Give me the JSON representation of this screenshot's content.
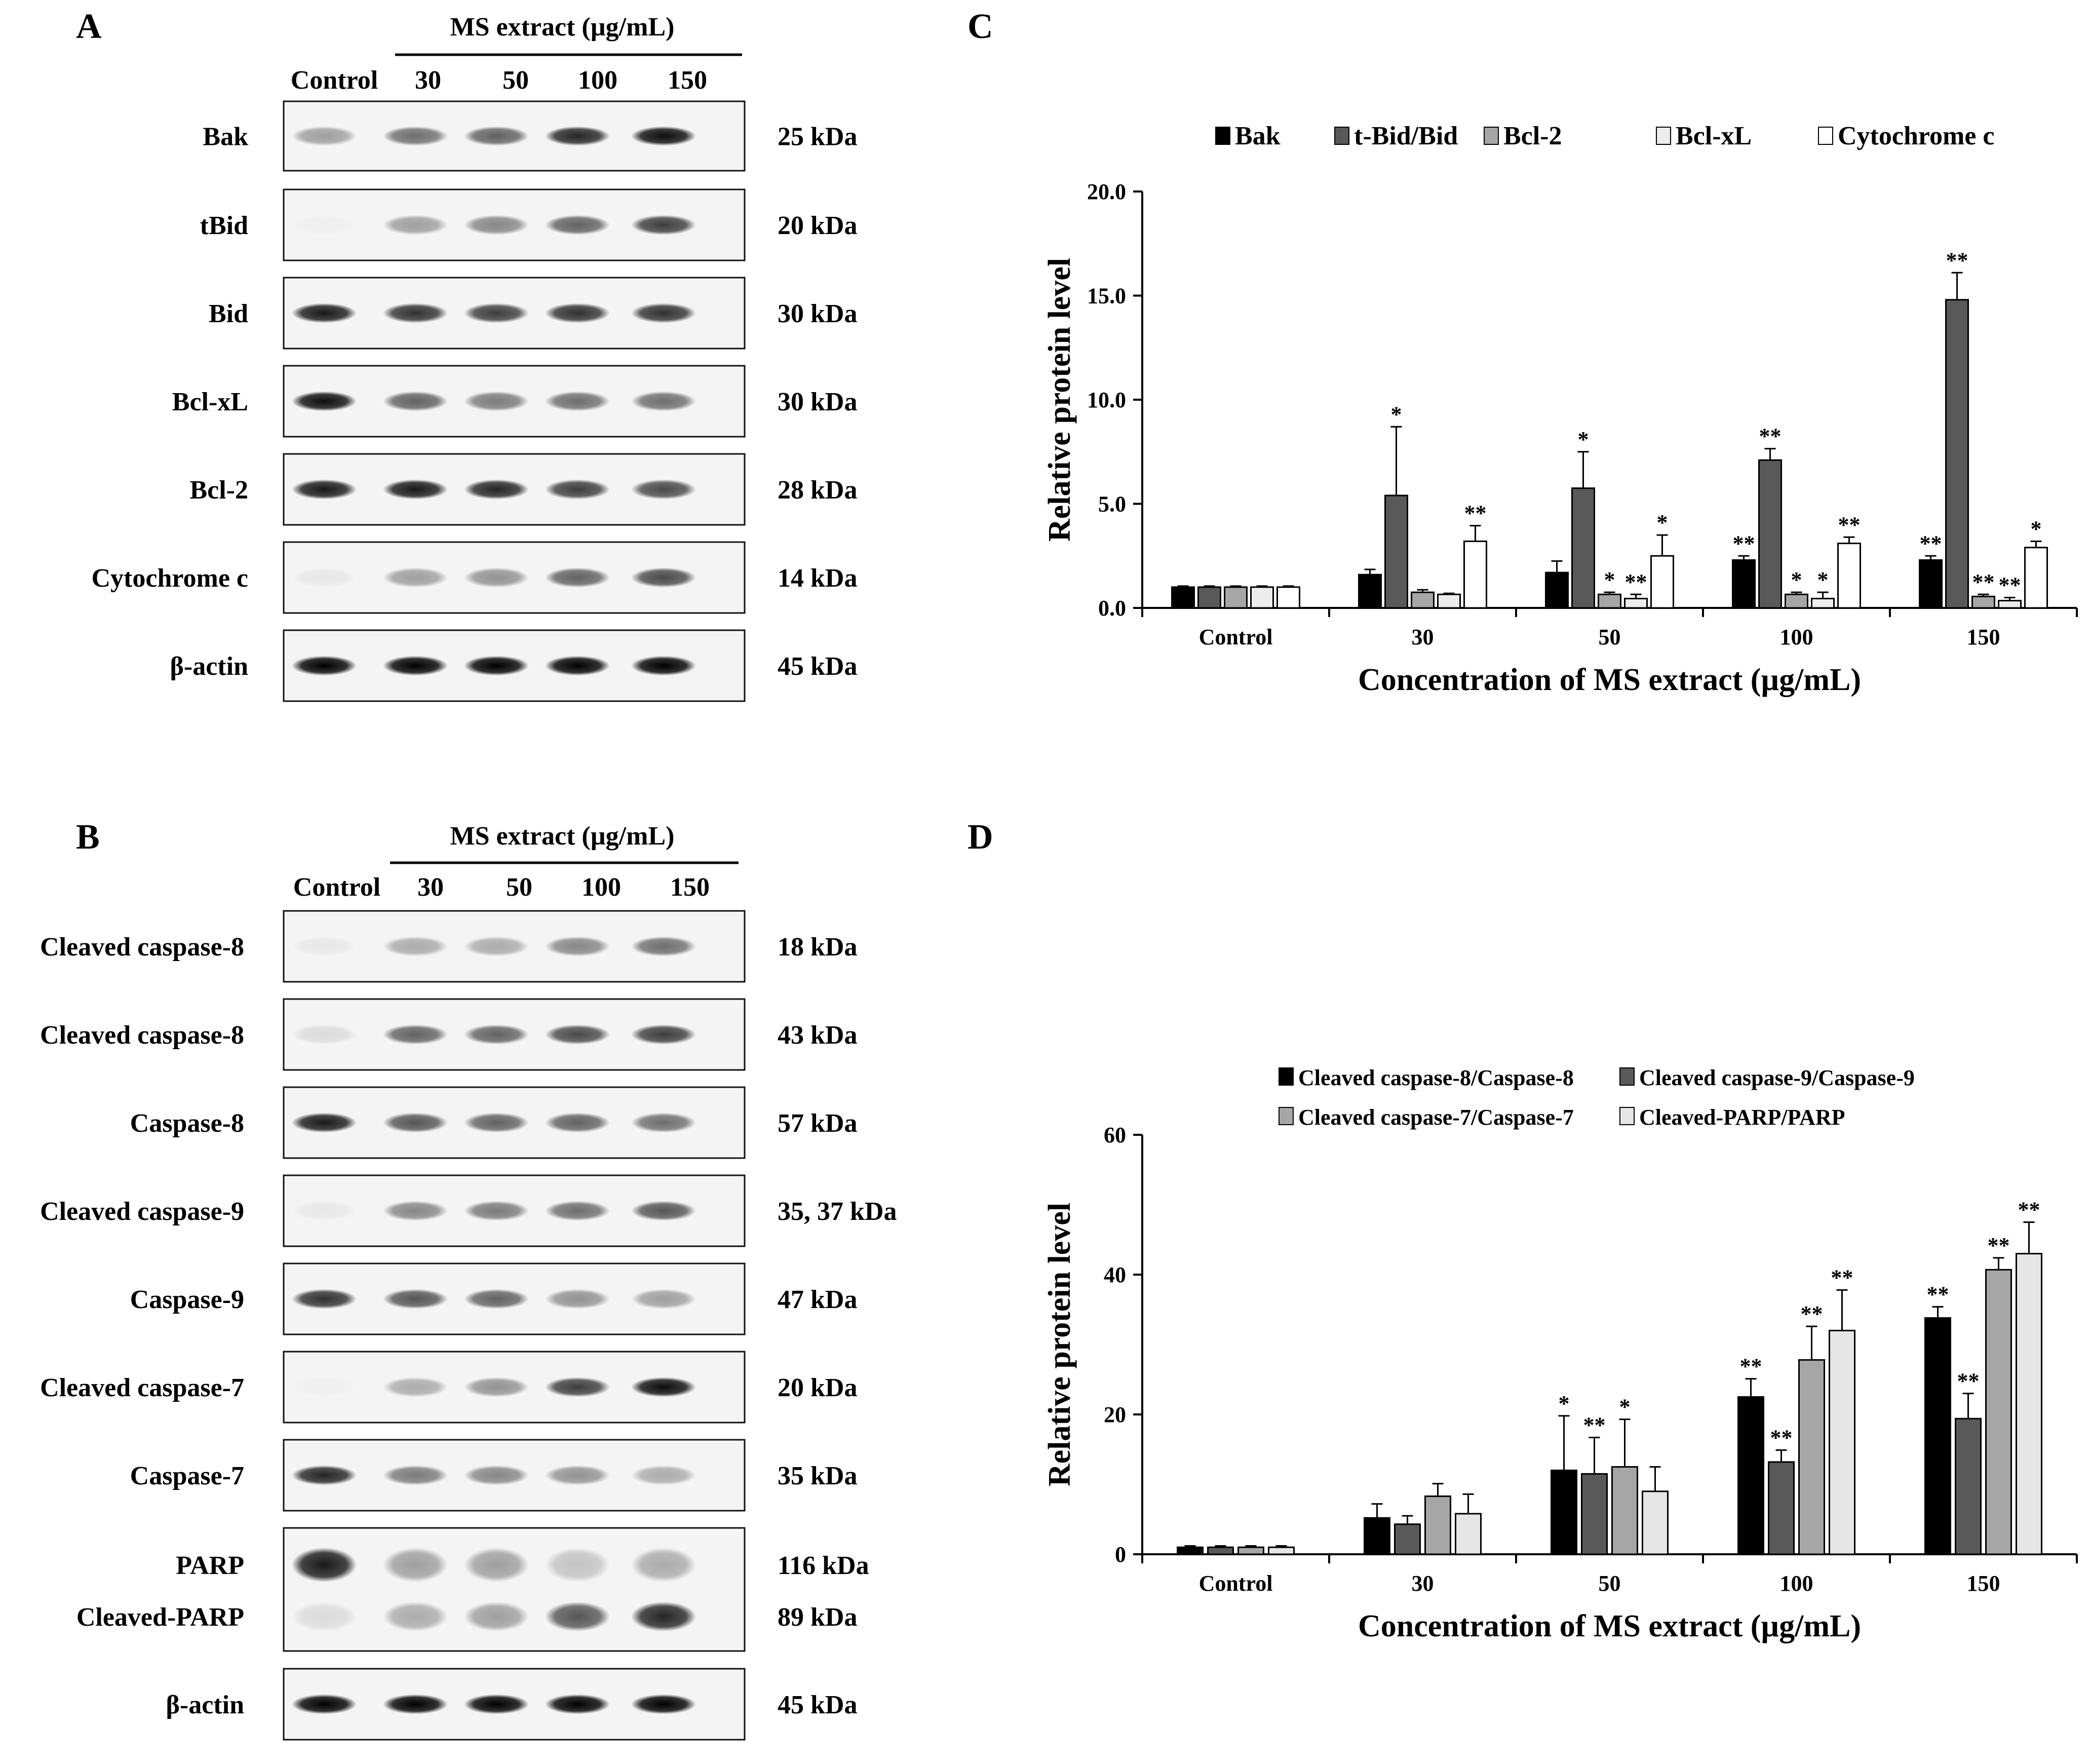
{
  "blots": [
    {
      "panel_letter": "A",
      "header": "MS extract (µg/mL)",
      "lanes": [
        "Control",
        "30",
        "50",
        "100",
        "150"
      ],
      "rows": [
        {
          "label": "Bak",
          "kda": "25 kDa",
          "intensity": [
            0.35,
            0.55,
            0.6,
            0.85,
            0.95
          ]
        },
        {
          "label": "tBid",
          "kda": "20 kDa",
          "intensity": [
            0.02,
            0.35,
            0.45,
            0.6,
            0.75
          ]
        },
        {
          "label": "Bid",
          "kda": "30 kDa",
          "intensity": [
            0.9,
            0.8,
            0.75,
            0.8,
            0.8
          ]
        },
        {
          "label": "Bcl-xL",
          "kda": "30 kDa",
          "intensity": [
            0.95,
            0.6,
            0.5,
            0.55,
            0.55
          ]
        },
        {
          "label": "Bcl-2",
          "kda": "28 kDa",
          "intensity": [
            0.9,
            0.9,
            0.85,
            0.75,
            0.7
          ]
        },
        {
          "label": "Cytochrome c",
          "kda": "14 kDa",
          "intensity": [
            0.05,
            0.35,
            0.4,
            0.6,
            0.7
          ]
        },
        {
          "label": "β-actin",
          "kda": "45 kDa",
          "intensity": [
            1,
            1,
            1,
            1,
            1
          ]
        }
      ]
    },
    {
      "panel_letter": "B",
      "header": "MS extract (µg/mL)",
      "lanes": [
        "Control",
        "30",
        "50",
        "100",
        "150"
      ],
      "rows": [
        {
          "label": "Cleaved caspase-8",
          "kda": "18 kDa",
          "intensity": [
            0.05,
            0.3,
            0.3,
            0.45,
            0.55
          ]
        },
        {
          "label": "Cleaved caspase-8",
          "kda": "43 kDa",
          "intensity": [
            0.1,
            0.6,
            0.6,
            0.7,
            0.75
          ]
        },
        {
          "label": "Caspase-8",
          "kda": "57 kDa",
          "intensity": [
            0.9,
            0.65,
            0.6,
            0.6,
            0.55
          ]
        },
        {
          "label": "Cleaved caspase-9",
          "kda": "35, 37 kDa",
          "intensity": [
            0.05,
            0.45,
            0.5,
            0.55,
            0.65
          ]
        },
        {
          "label": "Caspase-9",
          "kda": "47 kDa",
          "intensity": [
            0.8,
            0.65,
            0.6,
            0.4,
            0.35
          ]
        },
        {
          "label": "Cleaved caspase-7",
          "kda": "20 kDa",
          "intensity": [
            0.02,
            0.3,
            0.4,
            0.75,
            0.95
          ]
        },
        {
          "label": "Caspase-7",
          "kda": "35 kDa",
          "intensity": [
            0.85,
            0.5,
            0.45,
            0.4,
            0.3
          ]
        },
        {
          "label": "PARP",
          "kda": "116 kDa",
          "label2": "Cleaved-PARP",
          "kda2": "89 kDa",
          "intensity": [
            0.9,
            0.35,
            0.35,
            0.2,
            0.3
          ],
          "intensity2": [
            0.1,
            0.3,
            0.35,
            0.65,
            0.85
          ]
        },
        {
          "label": "β-actin",
          "kda": "45 kDa",
          "intensity": [
            1,
            1,
            1,
            1,
            1
          ]
        }
      ]
    }
  ],
  "chart_data": [
    {
      "panel_letter": "C",
      "type": "bar",
      "categories": [
        "Control",
        "30",
        "50",
        "100",
        "150"
      ],
      "xlabel": "Concentration of MS extract  (µg/mL)",
      "ylabel": "Relative protein level",
      "ylim": [
        0,
        20
      ],
      "yticks": [
        "0.0",
        "5.0",
        "10.0",
        "15.0",
        "20.0"
      ],
      "grid": false,
      "legend_position": "top",
      "series": [
        {
          "name": "Bak",
          "color": "#000000",
          "values": [
            1.0,
            1.6,
            1.7,
            2.3,
            2.3
          ],
          "errors": [
            0.05,
            0.25,
            0.55,
            0.2,
            0.2
          ],
          "marks": [
            "",
            "",
            "",
            "**",
            "**"
          ]
        },
        {
          "name": "t-Bid/Bid",
          "color": "#595959",
          "values": [
            1.0,
            5.4,
            5.75,
            7.1,
            14.8
          ],
          "errors": [
            0.05,
            3.3,
            1.75,
            0.55,
            1.3
          ],
          "marks": [
            "",
            "*",
            "*",
            "**",
            "**"
          ]
        },
        {
          "name": "Bcl-2",
          "color": "#a6a6a6",
          "values": [
            1.0,
            0.75,
            0.65,
            0.65,
            0.55
          ],
          "errors": [
            0.05,
            0.12,
            0.1,
            0.1,
            0.1
          ],
          "marks": [
            "",
            "",
            "*",
            "*",
            "**"
          ]
        },
        {
          "name": "Bcl-xL",
          "color": "#ededed",
          "values": [
            1.0,
            0.65,
            0.45,
            0.45,
            0.35
          ],
          "errors": [
            0.05,
            0.05,
            0.2,
            0.3,
            0.15
          ],
          "marks": [
            "",
            "",
            "**",
            "*",
            "**"
          ]
        },
        {
          "name": "Cytochrome c",
          "color": "#ffffff",
          "values": [
            1.0,
            3.2,
            2.5,
            3.1,
            2.9
          ],
          "errors": [
            0.05,
            0.75,
            1.0,
            0.3,
            0.3
          ],
          "marks": [
            "",
            "**",
            "*",
            "**",
            "*"
          ]
        }
      ]
    },
    {
      "panel_letter": "D",
      "type": "bar",
      "categories": [
        "Control",
        "30",
        "50",
        "100",
        "150"
      ],
      "xlabel": "Concentration of MS extract  (µg/mL)",
      "ylabel": "Relative protein level",
      "ylim": [
        0,
        60
      ],
      "yticks": [
        "0",
        "20",
        "40",
        "60"
      ],
      "grid": false,
      "legend_position": "top",
      "series": [
        {
          "name": "Cleaved caspase-8/Caspase-8",
          "color": "#000000",
          "values": [
            1.0,
            5.2,
            12.0,
            22.5,
            33.8
          ],
          "errors": [
            0.2,
            2.0,
            7.8,
            2.6,
            1.6
          ],
          "marks": [
            "",
            "",
            "*",
            "**",
            "**"
          ]
        },
        {
          "name": "Cleaved caspase-9/Caspase-9",
          "color": "#595959",
          "values": [
            1.0,
            4.3,
            11.5,
            13.2,
            19.4
          ],
          "errors": [
            0.2,
            1.2,
            5.2,
            1.7,
            3.6
          ],
          "marks": [
            "",
            "",
            "**",
            "**",
            "**"
          ]
        },
        {
          "name": "Cleaved caspase-7/Caspase-7",
          "color": "#a6a6a6",
          "values": [
            1.0,
            8.3,
            12.5,
            27.8,
            40.7
          ],
          "errors": [
            0.2,
            1.8,
            6.8,
            4.8,
            1.7
          ],
          "marks": [
            "",
            "",
            "*",
            "**",
            "**"
          ]
        },
        {
          "name": "Cleaved-PARP/PARP",
          "color": "#e6e6e6",
          "values": [
            1.0,
            5.8,
            9.0,
            32.0,
            43.0
          ],
          "errors": [
            0.2,
            2.8,
            3.5,
            5.8,
            4.5
          ],
          "marks": [
            "",
            "",
            "",
            "**",
            "**"
          ]
        }
      ]
    }
  ]
}
